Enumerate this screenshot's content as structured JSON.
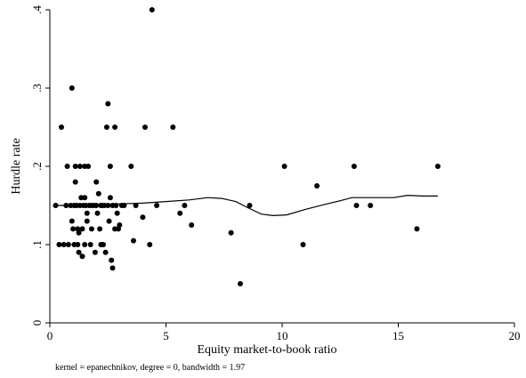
{
  "chart_data": {
    "type": "scatter",
    "xlabel": "Equity market-to-book ratio",
    "ylabel": "Hurdle rate",
    "note": "kernel = epanechnikov, degree = 0, bandwidth = 1.97",
    "xlim": [
      0,
      20
    ],
    "ylim": [
      0,
      0.4
    ],
    "xticks": [
      0,
      5,
      10,
      15,
      20
    ],
    "yticks": [
      0,
      0.1,
      0.2,
      0.3,
      0.4
    ],
    "xtick_labels": [
      "0",
      "5",
      "10",
      "15",
      "20"
    ],
    "ytick_labels": [
      "0",
      ".1",
      ".2",
      ".3",
      ".4"
    ],
    "grid": false,
    "legend": "none",
    "series": [
      {
        "type": "scatter",
        "color": "#000000",
        "points": [
          [
            0.25,
            0.15
          ],
          [
            0.4,
            0.1
          ],
          [
            0.5,
            0.25
          ],
          [
            0.6,
            0.1
          ],
          [
            0.7,
            0.15
          ],
          [
            0.75,
            0.2
          ],
          [
            0.8,
            0.1
          ],
          [
            0.9,
            0.15
          ],
          [
            0.95,
            0.3
          ],
          [
            0.95,
            0.13
          ],
          [
            1.0,
            0.12
          ],
          [
            1.05,
            0.1
          ],
          [
            1.05,
            0.15
          ],
          [
            1.1,
            0.2
          ],
          [
            1.1,
            0.18
          ],
          [
            1.15,
            0.15
          ],
          [
            1.2,
            0.12
          ],
          [
            1.2,
            0.1
          ],
          [
            1.25,
            0.115
          ],
          [
            1.25,
            0.09
          ],
          [
            1.3,
            0.15
          ],
          [
            1.3,
            0.2
          ],
          [
            1.35,
            0.16
          ],
          [
            1.4,
            0.12
          ],
          [
            1.4,
            0.085
          ],
          [
            1.45,
            0.15
          ],
          [
            1.5,
            0.1
          ],
          [
            1.5,
            0.2
          ],
          [
            1.5,
            0.16
          ],
          [
            1.55,
            0.15
          ],
          [
            1.6,
            0.14
          ],
          [
            1.6,
            0.13
          ],
          [
            1.65,
            0.2
          ],
          [
            1.7,
            0.15
          ],
          [
            1.75,
            0.1
          ],
          [
            1.8,
            0.15
          ],
          [
            1.8,
            0.12
          ],
          [
            1.9,
            0.15
          ],
          [
            1.95,
            0.09
          ],
          [
            2.0,
            0.15
          ],
          [
            2.0,
            0.18
          ],
          [
            2.05,
            0.14
          ],
          [
            2.1,
            0.165
          ],
          [
            2.15,
            0.12
          ],
          [
            2.2,
            0.15
          ],
          [
            2.2,
            0.1
          ],
          [
            2.25,
            0.15
          ],
          [
            2.3,
            0.1
          ],
          [
            2.35,
            0.15
          ],
          [
            2.4,
            0.09
          ],
          [
            2.45,
            0.25
          ],
          [
            2.5,
            0.28
          ],
          [
            2.5,
            0.15
          ],
          [
            2.55,
            0.13
          ],
          [
            2.6,
            0.2
          ],
          [
            2.6,
            0.16
          ],
          [
            2.65,
            0.08
          ],
          [
            2.7,
            0.07
          ],
          [
            2.7,
            0.15
          ],
          [
            2.8,
            0.12
          ],
          [
            2.8,
            0.25
          ],
          [
            2.85,
            0.15
          ],
          [
            2.9,
            0.14
          ],
          [
            2.95,
            0.12
          ],
          [
            3.0,
            0.125
          ],
          [
            3.1,
            0.15
          ],
          [
            3.2,
            0.15
          ],
          [
            3.5,
            0.2
          ],
          [
            3.6,
            0.105
          ],
          [
            3.7,
            0.15
          ],
          [
            4.0,
            0.135
          ],
          [
            4.1,
            0.25
          ],
          [
            4.3,
            0.1
          ],
          [
            4.4,
            0.4
          ],
          [
            4.6,
            0.15
          ],
          [
            5.3,
            0.25
          ],
          [
            5.6,
            0.14
          ],
          [
            5.8,
            0.15
          ],
          [
            6.1,
            0.125
          ],
          [
            7.8,
            0.115
          ],
          [
            8.2,
            0.05
          ],
          [
            8.6,
            0.15
          ],
          [
            10.1,
            0.2
          ],
          [
            10.9,
            0.1
          ],
          [
            11.5,
            0.175
          ],
          [
            13.1,
            0.2
          ],
          [
            13.2,
            0.15
          ],
          [
            13.8,
            0.15
          ],
          [
            15.8,
            0.12
          ],
          [
            16.7,
            0.2
          ]
        ]
      },
      {
        "type": "line",
        "color": "#000000",
        "points": [
          [
            0.25,
            0.15
          ],
          [
            1.0,
            0.15
          ],
          [
            2.0,
            0.151
          ],
          [
            3.0,
            0.152
          ],
          [
            4.0,
            0.153
          ],
          [
            5.0,
            0.155
          ],
          [
            6.0,
            0.157
          ],
          [
            6.8,
            0.16
          ],
          [
            7.4,
            0.159
          ],
          [
            8.0,
            0.155
          ],
          [
            8.6,
            0.146
          ],
          [
            9.1,
            0.139
          ],
          [
            9.6,
            0.137
          ],
          [
            10.2,
            0.138
          ],
          [
            11.0,
            0.145
          ],
          [
            11.8,
            0.151
          ],
          [
            12.5,
            0.156
          ],
          [
            13.0,
            0.16
          ],
          [
            14.0,
            0.16
          ],
          [
            14.8,
            0.16
          ],
          [
            15.4,
            0.163
          ],
          [
            16.0,
            0.162
          ],
          [
            16.7,
            0.162
          ]
        ]
      }
    ]
  }
}
